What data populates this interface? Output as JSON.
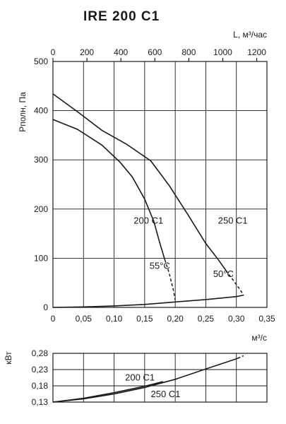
{
  "title": "IRE 200 C1",
  "chart_data": [
    {
      "type": "line",
      "ylabel": "Pполн, Па",
      "xlabel": "м³/с",
      "x2label": "L, м³/час",
      "xlim": [
        0,
        0.35
      ],
      "ylim": [
        0,
        500
      ],
      "x2lim": [
        0,
        1260
      ],
      "x_ticks": [
        "0",
        "0,05",
        "0,10",
        "0,15",
        "0,20",
        "0,25",
        "0,30",
        "0,35"
      ],
      "y_ticks": [
        "0",
        "100",
        "200",
        "300",
        "400",
        "500"
      ],
      "x2_ticks": [
        "0",
        "200",
        "400",
        "600",
        "800",
        "1000",
        "1200"
      ],
      "grid": true,
      "series": [
        {
          "name": "200 C1",
          "x": [
            0,
            0.04,
            0.08,
            0.11,
            0.13,
            0.15,
            0.165,
            0.175,
            0.183
          ],
          "y": [
            382,
            362,
            330,
            295,
            265,
            220,
            175,
            130,
            97
          ]
        },
        {
          "name": "200 C1 55°C",
          "x": [
            0.183,
            0.19,
            0.197,
            0.2
          ],
          "y": [
            97,
            70,
            35,
            15
          ],
          "style": "dashed"
        },
        {
          "name": "250 C1",
          "x": [
            0,
            0.04,
            0.08,
            0.12,
            0.16,
            0.19,
            0.22,
            0.25,
            0.27,
            0.283
          ],
          "y": [
            434,
            398,
            360,
            332,
            298,
            248,
            190,
            130,
            98,
            75
          ]
        },
        {
          "name": "250 C1 50°C",
          "x": [
            0.283,
            0.295,
            0.305,
            0.312
          ],
          "y": [
            75,
            55,
            38,
            25
          ],
          "style": "dashed"
        },
        {
          "name": "",
          "x": [
            0,
            0.05,
            0.1,
            0.15,
            0.2,
            0.25,
            0.3,
            0.312
          ],
          "y": [
            0,
            1,
            3,
            6,
            11,
            16,
            22,
            25
          ]
        }
      ],
      "annotations": [
        {
          "text": "200 C1",
          "x": 0.132,
          "y": 170
        },
        {
          "text": "250 C1",
          "x": 0.27,
          "y": 170
        },
        {
          "text": "55°C",
          "x": 0.158,
          "y": 78
        },
        {
          "text": "50°C",
          "x": 0.262,
          "y": 62
        }
      ]
    },
    {
      "type": "line",
      "ylabel": "кВт",
      "xlim": [
        0,
        0.35
      ],
      "ylim": [
        0.13,
        0.28
      ],
      "y_ticks": [
        "0,28",
        "0,23",
        "0,18",
        "0,13"
      ],
      "grid": true,
      "series": [
        {
          "name": "200 C1",
          "x": [
            0,
            0.05,
            0.1,
            0.15,
            0.18
          ],
          "y": [
            0.13,
            0.142,
            0.159,
            0.179,
            0.193
          ]
        },
        {
          "name": "250 C1",
          "x": [
            0,
            0.05,
            0.1,
            0.15,
            0.2,
            0.25,
            0.3
          ],
          "y": [
            0.13,
            0.14,
            0.155,
            0.175,
            0.2,
            0.232,
            0.263
          ]
        },
        {
          "name": "",
          "x": [
            0.3,
            0.315
          ],
          "y": [
            0.263,
            0.275
          ],
          "style": "dashdot"
        }
      ],
      "annotations": [
        {
          "text": "200 C1",
          "x": 0.118,
          "y": 0.196
        },
        {
          "text": "250 C1",
          "x": 0.16,
          "y": 0.145
        }
      ]
    }
  ]
}
